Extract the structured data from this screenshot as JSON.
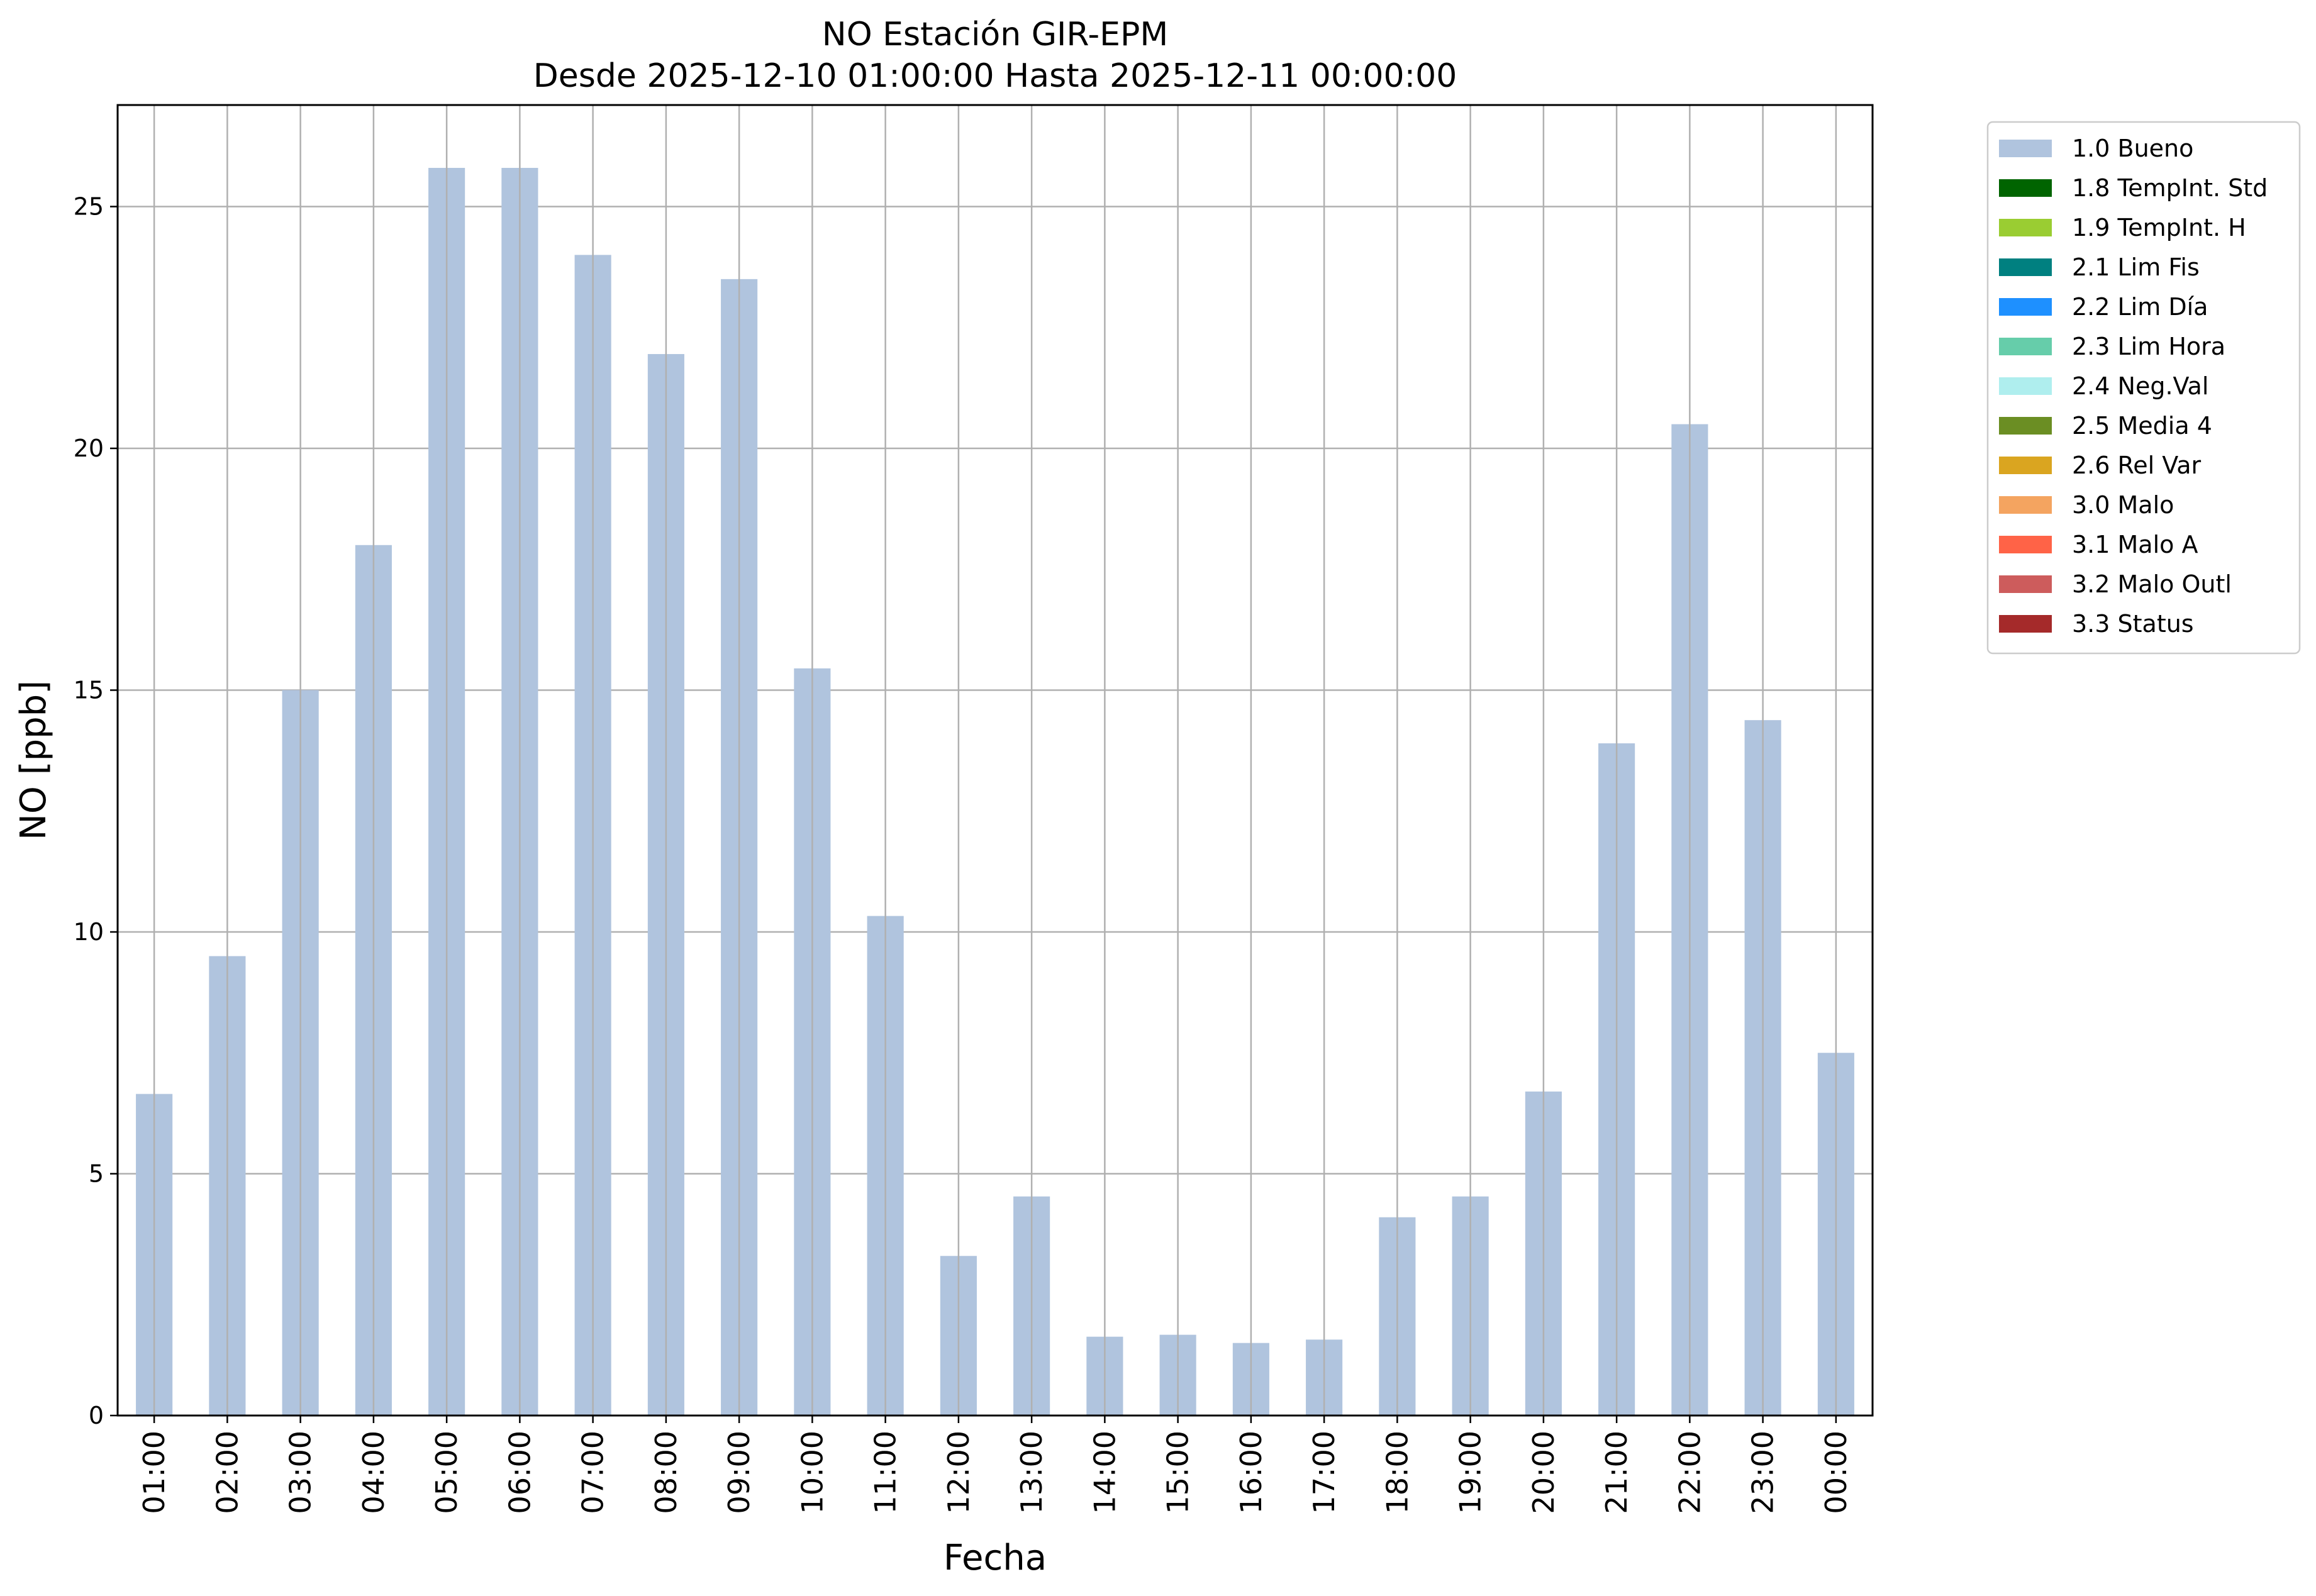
{
  "chart_data": {
    "type": "bar",
    "title": "NO Estación GIR-EPM",
    "subtitle": "Desde 2025-12-10 01:00:00 Hasta 2025-12-11 00:00:00",
    "xlabel": "Fecha",
    "ylabel": "NO [ppb]",
    "ylim": [
      0,
      27.1
    ],
    "yticks": [
      "0",
      "5",
      "10",
      "15",
      "20",
      "25"
    ],
    "grid": true,
    "legend_position": "outside-top-right",
    "categories": [
      "01:00",
      "02:00",
      "03:00",
      "04:00",
      "05:00",
      "06:00",
      "07:00",
      "08:00",
      "09:00",
      "10:00",
      "11:00",
      "12:00",
      "13:00",
      "14:00",
      "15:00",
      "16:00",
      "17:00",
      "18:00",
      "19:00",
      "20:00",
      "21:00",
      "22:00",
      "23:00",
      "00:00"
    ],
    "series": [
      {
        "name": "1.0 Bueno",
        "color": "#b0c4de",
        "values": [
          6.65,
          9.5,
          15.0,
          18.0,
          25.8,
          25.8,
          24.0,
          21.95,
          23.5,
          15.45,
          10.33,
          3.3,
          4.53,
          1.63,
          1.67,
          1.5,
          1.57,
          4.1,
          4.53,
          6.7,
          13.9,
          20.5,
          14.38,
          7.5
        ]
      }
    ],
    "legend": [
      {
        "label": "1.0 Bueno",
        "color": "#b0c4de"
      },
      {
        "label": "1.8 TempInt. Std",
        "color": "#006400"
      },
      {
        "label": "1.9 TempInt. H",
        "color": "#9acd32"
      },
      {
        "label": "2.1 Lim Fis",
        "color": "#008080"
      },
      {
        "label": "2.2 Lim Día",
        "color": "#1e90ff"
      },
      {
        "label": "2.3 Lim Hora",
        "color": "#66cdaa"
      },
      {
        "label": "2.4 Neg.Val",
        "color": "#afeeee"
      },
      {
        "label": "2.5 Media 4",
        "color": "#6b8e23"
      },
      {
        "label": "2.6 Rel Var",
        "color": "#daa520"
      },
      {
        "label": "3.0 Malo",
        "color": "#f4a460"
      },
      {
        "label": "3.1 Malo A",
        "color": "#ff6347"
      },
      {
        "label": "3.2 Malo Outl",
        "color": "#cd5c5c"
      },
      {
        "label": "3.3 Status",
        "color": "#a52a2a"
      }
    ]
  }
}
